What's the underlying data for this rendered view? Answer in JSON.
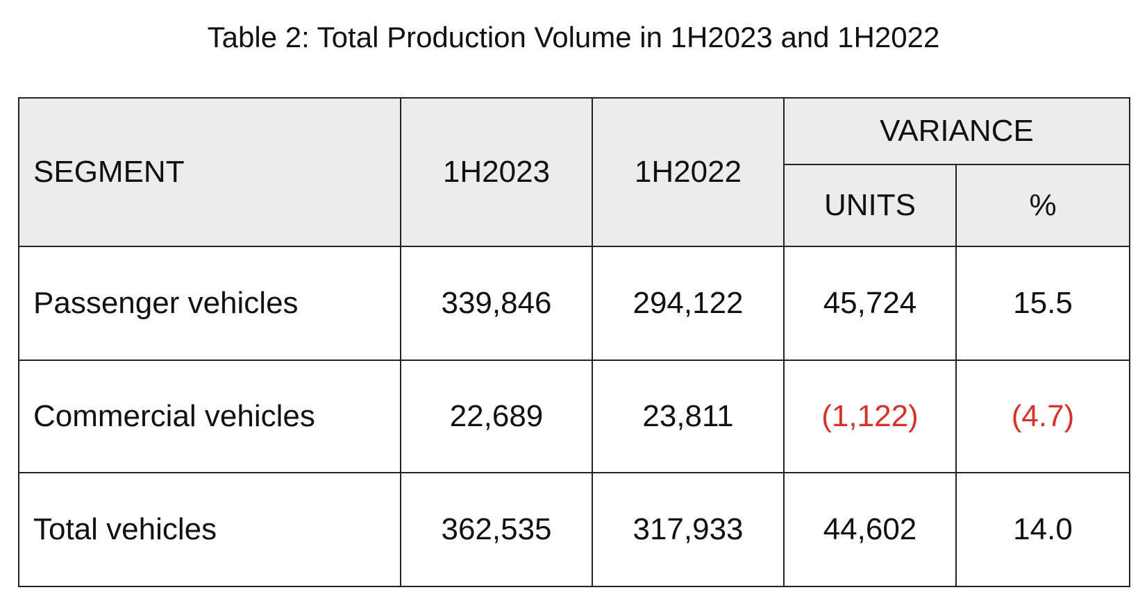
{
  "caption": "Table 2: Total Production Volume in 1H2023 and 1H2022",
  "header": {
    "segment": "SEGMENT",
    "col_1h2023": "1H2023",
    "col_1h2022": "1H2022",
    "variance": "VARIANCE",
    "units": "UNITS",
    "percent": "%"
  },
  "rows": [
    {
      "segment": "Passenger vehicles",
      "h2023": "339,846",
      "h2022": "294,122",
      "units": "45,724",
      "percent": "15.5"
    },
    {
      "segment": "Commercial vehicles",
      "h2023": "22,689",
      "h2022": "23,811",
      "units": "(1,122)",
      "percent": "(4.7)"
    },
    {
      "segment": "Total vehicles",
      "h2023": "362,535",
      "h2022": "317,933",
      "units": "44,602",
      "percent": "14.0"
    }
  ],
  "colors": {
    "negative": "#d9302a",
    "header_bg": "#ececec"
  }
}
